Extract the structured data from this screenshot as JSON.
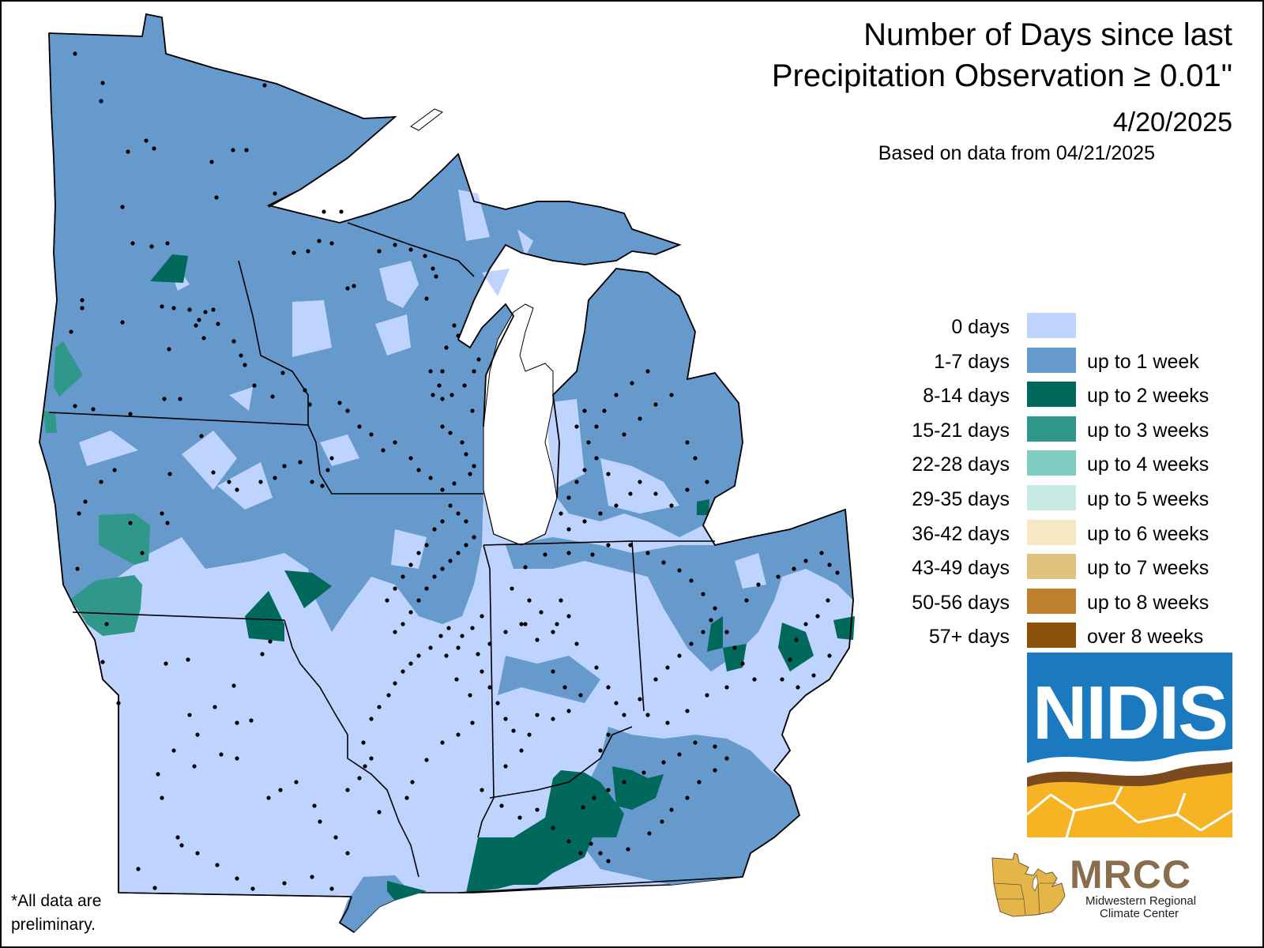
{
  "title": {
    "line1": "Number of Days since last",
    "line2": "Precipitation Observation ≥ 0.01\"",
    "date": "4/20/2025",
    "based_on": "Based on data from 04/21/2025"
  },
  "legend": [
    {
      "days": "0 days",
      "weeks": "",
      "color": "#bfd3ff"
    },
    {
      "days": "1-7 days",
      "weeks": "up to 1 week",
      "color": "#6699cc"
    },
    {
      "days": "8-14 days",
      "weeks": "up to 2 weeks",
      "color": "#00695c"
    },
    {
      "days": "15-21 days",
      "weeks": "up to 3 weeks",
      "color": "#30978b"
    },
    {
      "days": "22-28 days",
      "weeks": "up to 4 weeks",
      "color": "#80cbc0"
    },
    {
      "days": "29-35 days",
      "weeks": "up to 5 weeks",
      "color": "#c7eae5"
    },
    {
      "days": "36-42 days",
      "weeks": "up to 6 weeks",
      "color": "#f6e8c3"
    },
    {
      "days": "43-49 days",
      "weeks": "up to 7 weeks",
      "color": "#dfc27d"
    },
    {
      "days": "50-56 days",
      "weeks": "up to 8 weeks",
      "color": "#bf812d"
    },
    {
      "days": "57+ days",
      "weeks": "over 8 weeks",
      "color": "#8c510a"
    }
  ],
  "logos": {
    "nidis": "NIDIS",
    "mrcc": "MRCC",
    "mrcc_line1": "Midwestern Regional",
    "mrcc_line2": "Climate Center"
  },
  "footnote": {
    "line1": "*All data are",
    "line2": "preliminary."
  },
  "colors": {
    "zero_days": "#bfd3ff",
    "one_week": "#6699cc",
    "two_weeks": "#00695c",
    "three_weeks": "#30978b",
    "lake": "#ffffff",
    "station_dot": "#000000"
  }
}
